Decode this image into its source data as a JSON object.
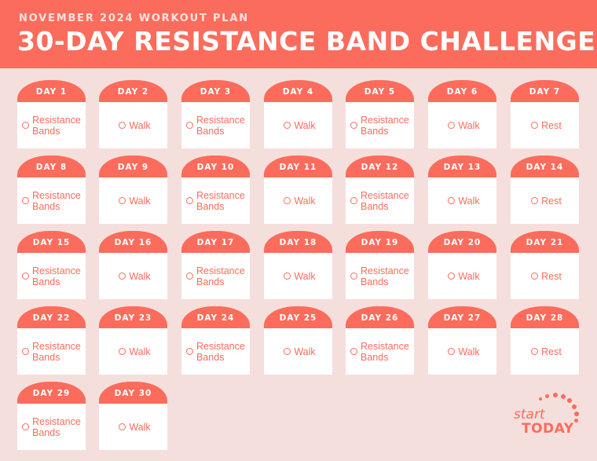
{
  "header": {
    "subtitle": "NOVEMBER 2024 WORKOUT PLAN",
    "title": "30-DAY RESISTANCE BAND CHALLENGE",
    "accent_color": "#fb6c5c",
    "background_color": "#f5dfdd"
  },
  "days": [
    {
      "label": "DAY 1",
      "activity": "Resistance Bands"
    },
    {
      "label": "DAY 2",
      "activity": "Walk"
    },
    {
      "label": "DAY 3",
      "activity": "Resistance Bands"
    },
    {
      "label": "DAY 4",
      "activity": "Walk"
    },
    {
      "label": "DAY 5",
      "activity": "Resistance Bands"
    },
    {
      "label": "DAY 6",
      "activity": "Walk"
    },
    {
      "label": "DAY 7",
      "activity": "Rest"
    },
    {
      "label": "DAY 8",
      "activity": "Resistance Bands"
    },
    {
      "label": "DAY 9",
      "activity": "Walk"
    },
    {
      "label": "DAY 10",
      "activity": "Resistance Bands"
    },
    {
      "label": "DAY 11",
      "activity": "Walk"
    },
    {
      "label": "DAY 12",
      "activity": "Resistance Bands"
    },
    {
      "label": "DAY 13",
      "activity": "Walk"
    },
    {
      "label": "DAY 14",
      "activity": "Rest"
    },
    {
      "label": "DAY 15",
      "activity": "Resistance Bands"
    },
    {
      "label": "DAY 16",
      "activity": "Walk"
    },
    {
      "label": "DAY 17",
      "activity": "Resistance Bands"
    },
    {
      "label": "DAY 18",
      "activity": "Walk"
    },
    {
      "label": "DAY 19",
      "activity": "Resistance Bands"
    },
    {
      "label": "DAY 20",
      "activity": "Walk"
    },
    {
      "label": "DAY 21",
      "activity": "Rest"
    },
    {
      "label": "DAY 22",
      "activity": "Resistance Bands"
    },
    {
      "label": "DAY 23",
      "activity": "Walk"
    },
    {
      "label": "DAY 24",
      "activity": "Resistance Bands"
    },
    {
      "label": "DAY 25",
      "activity": "Walk"
    },
    {
      "label": "DAY 26",
      "activity": "Resistance Bands"
    },
    {
      "label": "DAY 27",
      "activity": "Walk"
    },
    {
      "label": "DAY 28",
      "activity": "Rest"
    },
    {
      "label": "DAY 29",
      "activity": "Resistance Bands"
    },
    {
      "label": "DAY 30",
      "activity": "Walk"
    }
  ],
  "logo": {
    "line1": "start",
    "line2": "TODAY",
    "icon": "sunrise-dots-icon"
  }
}
